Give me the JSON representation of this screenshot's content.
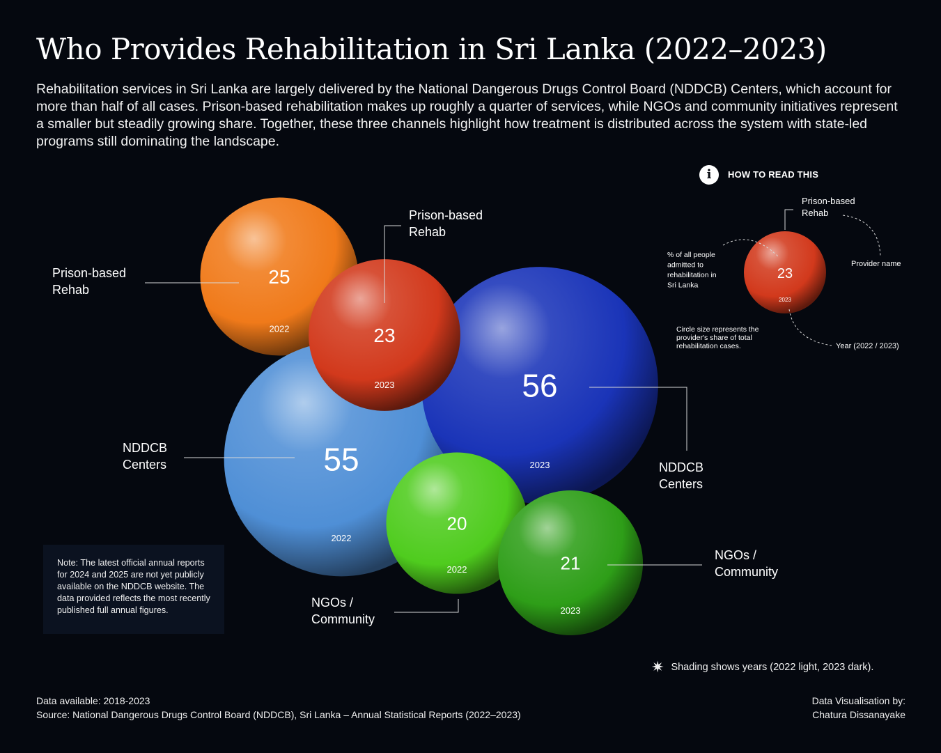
{
  "title": "Who Provides Rehabilitation in Sri Lanka (2022–2023)",
  "subtitle": "Rehabilitation services in Sri Lanka are largely delivered by the National Dangerous Drugs Control Board (NDDCB) Centers, which account for more than half of all cases. Prison-based rehabilitation makes up roughly a quarter of services, while NGOs and community initiatives represent a smaller but steadily growing share. Together, these three channels highlight how treatment is distributed across the system with state-led programs still dominating the landscape.",
  "chart_data": {
    "type": "bubble",
    "unit": "% of all people admitted to rehabilitation in Sri Lanka",
    "points": [
      {
        "provider": "Prison-based Rehab",
        "label_lines": [
          "Prison-based",
          "Rehab"
        ],
        "year": "2022",
        "value": 25,
        "color": "#f07a1a"
      },
      {
        "provider": "Prison-based Rehab",
        "label_lines": [
          "Prison-based",
          "Rehab"
        ],
        "year": "2023",
        "value": 23,
        "color": "#d2391c"
      },
      {
        "provider": "NDDCB Centers",
        "label_lines": [
          "NDDCB",
          "Centers"
        ],
        "year": "2022",
        "value": 55,
        "color": "#4f8fd6"
      },
      {
        "provider": "NDDCB Centers",
        "label_lines": [
          "NDDCB",
          "Centers"
        ],
        "year": "2023",
        "value": 56,
        "color": "#1a34b8"
      },
      {
        "provider": "NGOs / Community",
        "label_lines": [
          "NGOs /",
          "Community"
        ],
        "year": "2022",
        "value": 20,
        "color": "#4fcc1e"
      },
      {
        "provider": "NGOs / Community",
        "label_lines": [
          "NGOs /",
          "Community"
        ],
        "year": "2023",
        "value": 21,
        "color": "#2e9e18"
      }
    ]
  },
  "how_to_read": {
    "heading": "HOW TO READ THIS",
    "info_icon": "info-icon",
    "example_value": "23",
    "example_year": "2023",
    "example_color": "#d2391c",
    "provider_lines": [
      "Prison-based",
      "Rehab"
    ],
    "percent_lines": [
      "% of all people",
      "admitted to",
      "rehabilitation in",
      "Sri Lanka"
    ],
    "provider_name_label": "Provider name",
    "size_lines": [
      "Circle size represents the",
      "provider's share of total",
      "rehabilitation cases."
    ],
    "year_label": "Year (2022 / 2023)"
  },
  "note": "Note: The latest official annual reports for 2024 and 2025 are not yet publicly available on the NDDCB website. The data provided reflects the most recently published full annual figures.",
  "shading_note": {
    "icon": "star-burst-icon",
    "text": "Shading shows years (2022 light, 2023 dark)."
  },
  "footer": {
    "data_available": "Data available: 2018-2023",
    "source": "Source: National Dangerous Drugs Control Board (NDDCB), Sri Lanka – Annual Statistical Reports (2022–2023)",
    "credit_line1": "Data Visualisation by:",
    "credit_line2": "Chatura Dissanayake"
  }
}
